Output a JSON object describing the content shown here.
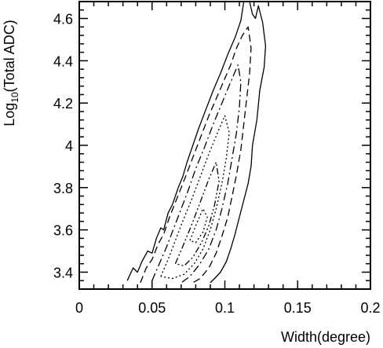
{
  "chart_data": {
    "type": "contour",
    "xlabel": "Width(degree)",
    "ylabel": "Log10(Total ADC)",
    "ylabel_parts": {
      "base": "Log",
      "sub": "10",
      "rest": "(Total ADC)"
    },
    "xlim": [
      0,
      0.2
    ],
    "ylim": [
      3.32,
      4.68
    ],
    "xticks": [
      {
        "value": 0,
        "label": "0"
      },
      {
        "value": 0.05,
        "label": "0.05"
      },
      {
        "value": 0.1,
        "label": "0.1"
      },
      {
        "value": 0.15,
        "label": "0.15"
      },
      {
        "value": 0.2,
        "label": "0.2"
      }
    ],
    "yticks": [
      {
        "value": 3.4,
        "label": "3.4"
      },
      {
        "value": 3.6,
        "label": "3.6"
      },
      {
        "value": 3.8,
        "label": "3.8"
      },
      {
        "value": 4.0,
        "label": "4"
      },
      {
        "value": 4.2,
        "label": "4.2"
      },
      {
        "value": 4.4,
        "label": "4.4"
      },
      {
        "value": 4.6,
        "label": "4.6"
      }
    ],
    "contours": [
      {
        "level": 1,
        "style": "solid",
        "points": [
          [
            0.033,
            3.36
          ],
          [
            0.037,
            3.42
          ],
          [
            0.04,
            3.4
          ],
          [
            0.043,
            3.45
          ],
          [
            0.047,
            3.5
          ],
          [
            0.05,
            3.49
          ],
          [
            0.053,
            3.56
          ],
          [
            0.056,
            3.61
          ],
          [
            0.058,
            3.6
          ],
          [
            0.061,
            3.68
          ],
          [
            0.064,
            3.72
          ],
          [
            0.068,
            3.8
          ],
          [
            0.071,
            3.85
          ],
          [
            0.074,
            3.92
          ],
          [
            0.078,
            4.0
          ],
          [
            0.082,
            4.08
          ],
          [
            0.087,
            4.17
          ],
          [
            0.092,
            4.26
          ],
          [
            0.097,
            4.34
          ],
          [
            0.102,
            4.43
          ],
          [
            0.107,
            4.51
          ],
          [
            0.111,
            4.59
          ],
          [
            0.113,
            4.68
          ]
        ]
      },
      {
        "level": 1,
        "style": "solid",
        "points": [
          [
            0.117,
            4.68
          ],
          [
            0.119,
            4.62
          ],
          [
            0.121,
            4.6
          ],
          [
            0.123,
            4.66
          ],
          [
            0.126,
            4.58
          ],
          [
            0.128,
            4.47
          ],
          [
            0.127,
            4.37
          ],
          [
            0.124,
            4.26
          ],
          [
            0.122,
            4.12
          ],
          [
            0.119,
            4.0
          ],
          [
            0.118,
            3.9
          ],
          [
            0.116,
            3.82
          ],
          [
            0.113,
            3.74
          ],
          [
            0.11,
            3.66
          ],
          [
            0.107,
            3.58
          ],
          [
            0.104,
            3.51
          ],
          [
            0.101,
            3.45
          ],
          [
            0.097,
            3.4
          ],
          [
            0.093,
            3.37
          ],
          [
            0.09,
            3.35
          ]
        ]
      },
      {
        "level": 2,
        "style": "dashed",
        "points": [
          [
            0.042,
            3.35
          ],
          [
            0.046,
            3.42
          ],
          [
            0.05,
            3.46
          ],
          [
            0.054,
            3.53
          ],
          [
            0.058,
            3.58
          ],
          [
            0.062,
            3.66
          ],
          [
            0.066,
            3.73
          ],
          [
            0.07,
            3.8
          ],
          [
            0.074,
            3.87
          ],
          [
            0.079,
            3.96
          ],
          [
            0.084,
            4.05
          ],
          [
            0.089,
            4.14
          ],
          [
            0.094,
            4.22
          ],
          [
            0.099,
            4.3
          ],
          [
            0.104,
            4.38
          ],
          [
            0.108,
            4.46
          ],
          [
            0.112,
            4.52
          ],
          [
            0.116,
            4.56
          ],
          [
            0.118,
            4.46
          ],
          [
            0.117,
            4.34
          ],
          [
            0.115,
            4.22
          ],
          [
            0.113,
            4.1
          ],
          [
            0.111,
            3.98
          ],
          [
            0.108,
            3.86
          ],
          [
            0.105,
            3.76
          ],
          [
            0.102,
            3.66
          ],
          [
            0.098,
            3.57
          ],
          [
            0.094,
            3.49
          ],
          [
            0.089,
            3.42
          ],
          [
            0.083,
            3.37
          ],
          [
            0.078,
            3.35
          ]
        ]
      },
      {
        "level": 3,
        "style": "dash-dot",
        "points": [
          [
            0.05,
            3.36
          ],
          [
            0.055,
            3.44
          ],
          [
            0.06,
            3.52
          ],
          [
            0.065,
            3.61
          ],
          [
            0.07,
            3.7
          ],
          [
            0.075,
            3.79
          ],
          [
            0.08,
            3.89
          ],
          [
            0.086,
            3.99
          ],
          [
            0.092,
            4.1
          ],
          [
            0.098,
            4.2
          ],
          [
            0.104,
            4.3
          ],
          [
            0.109,
            4.38
          ],
          [
            0.111,
            4.3
          ],
          [
            0.11,
            4.18
          ],
          [
            0.108,
            4.06
          ],
          [
            0.105,
            3.94
          ],
          [
            0.102,
            3.82
          ],
          [
            0.098,
            3.7
          ],
          [
            0.094,
            3.6
          ],
          [
            0.089,
            3.51
          ],
          [
            0.083,
            3.44
          ],
          [
            0.076,
            3.38
          ],
          [
            0.07,
            3.35
          ]
        ]
      },
      {
        "level": 4,
        "style": "dotted",
        "points": [
          [
            0.056,
            3.38
          ],
          [
            0.061,
            3.46
          ],
          [
            0.066,
            3.55
          ],
          [
            0.071,
            3.64
          ],
          [
            0.077,
            3.74
          ],
          [
            0.083,
            3.85
          ],
          [
            0.089,
            3.96
          ],
          [
            0.095,
            4.06
          ],
          [
            0.1,
            4.14
          ],
          [
            0.103,
            4.06
          ],
          [
            0.101,
            3.94
          ],
          [
            0.098,
            3.82
          ],
          [
            0.094,
            3.7
          ],
          [
            0.09,
            3.6
          ],
          [
            0.085,
            3.51
          ],
          [
            0.079,
            3.44
          ],
          [
            0.072,
            3.39
          ],
          [
            0.064,
            3.37
          ],
          [
            0.056,
            3.38
          ]
        ]
      },
      {
        "level": 5,
        "style": "dash-dot-dot",
        "points": [
          [
            0.066,
            3.44
          ],
          [
            0.071,
            3.52
          ],
          [
            0.077,
            3.62
          ],
          [
            0.083,
            3.73
          ],
          [
            0.089,
            3.84
          ],
          [
            0.094,
            3.92
          ],
          [
            0.096,
            3.83
          ],
          [
            0.093,
            3.72
          ],
          [
            0.089,
            3.62
          ],
          [
            0.084,
            3.54
          ],
          [
            0.078,
            3.47
          ],
          [
            0.072,
            3.43
          ],
          [
            0.066,
            3.44
          ]
        ]
      },
      {
        "level": 6,
        "style": "dotted",
        "points": [
          [
            0.076,
            3.55
          ],
          [
            0.08,
            3.62
          ],
          [
            0.085,
            3.7
          ],
          [
            0.088,
            3.66
          ],
          [
            0.085,
            3.59
          ],
          [
            0.08,
            3.54
          ],
          [
            0.076,
            3.55
          ]
        ]
      }
    ]
  }
}
